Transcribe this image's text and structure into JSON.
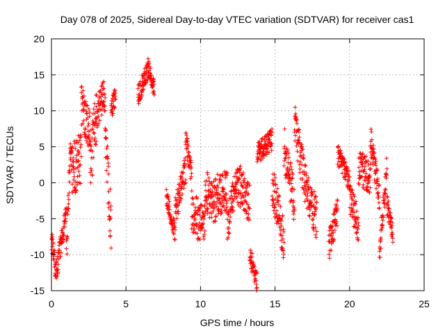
{
  "chart_data": {
    "type": "scatter",
    "title": "Day 078 of 2025, Sidereal Day-to-day VTEC variation (SDTVAR) for receiver cas1",
    "xlabel": "GPS time / hours",
    "ylabel": "SDTVAR / TECUs",
    "xlim": [
      0,
      25
    ],
    "ylim": [
      -15,
      20
    ],
    "grid": true,
    "marker": "plus",
    "marker_color": "#ff0000",
    "x_ticks": [
      0,
      5,
      10,
      15,
      20,
      25
    ],
    "x_tick_labels": [
      "0",
      "5",
      "10",
      "15",
      "20",
      "25"
    ],
    "y_ticks": [
      -15,
      -10,
      -5,
      0,
      5,
      10,
      15,
      20
    ],
    "y_tick_labels": [
      "-15",
      "-10",
      "-5",
      "0",
      "5",
      "10",
      "15",
      "20"
    ],
    "segments": [
      {
        "x0": 0.0,
        "x1": 0.35,
        "y0": -8,
        "y1": -13,
        "noise": 1.5
      },
      {
        "x0": 0.35,
        "x1": 1.0,
        "y0": -12,
        "y1": -4,
        "noise": 1.5
      },
      {
        "x0": 1.0,
        "x1": 1.3,
        "y0": -10,
        "y1": 6,
        "noise": 2.5
      },
      {
        "x0": 1.3,
        "x1": 2.0,
        "y0": 2,
        "y1": 3,
        "noise": 4
      },
      {
        "x0": 2.0,
        "x1": 2.6,
        "y0": 11,
        "y1": 7,
        "noise": 3
      },
      {
        "x0": 2.6,
        "x1": 3.0,
        "y0": 3,
        "y1": 9,
        "noise": 4
      },
      {
        "x0": 3.0,
        "x1": 3.6,
        "y0": 10,
        "y1": 12,
        "noise": 2.5
      },
      {
        "x0": 3.6,
        "x1": 4.0,
        "y0": 6,
        "y1": -6,
        "noise": 4
      },
      {
        "x0": 4.0,
        "x1": 4.3,
        "y0": 10,
        "y1": 12,
        "noise": 1.5
      },
      {
        "x0": 5.8,
        "x1": 6.5,
        "y0": 12,
        "y1": 16,
        "noise": 1.5
      },
      {
        "x0": 6.5,
        "x1": 6.9,
        "y0": 16,
        "y1": 13,
        "noise": 1.2
      },
      {
        "x0": 7.7,
        "x1": 8.3,
        "y0": -2,
        "y1": -7,
        "noise": 1.2
      },
      {
        "x0": 8.3,
        "x1": 9.0,
        "y0": -4,
        "y1": 2,
        "noise": 2
      },
      {
        "x0": 9.0,
        "x1": 9.4,
        "y0": 6,
        "y1": 1,
        "noise": 1.5
      },
      {
        "x0": 9.4,
        "x1": 10.3,
        "y0": -4,
        "y1": -6,
        "noise": 3
      },
      {
        "x0": 10.3,
        "x1": 11.0,
        "y0": -1,
        "y1": -3,
        "noise": 3
      },
      {
        "x0": 11.0,
        "x1": 11.8,
        "y0": -2,
        "y1": -1,
        "noise": 3
      },
      {
        "x0": 11.8,
        "x1": 12.5,
        "y0": -6,
        "y1": 1,
        "noise": 2.5
      },
      {
        "x0": 12.5,
        "x1": 13.3,
        "y0": 0,
        "y1": -3,
        "noise": 3
      },
      {
        "x0": 13.3,
        "x1": 13.8,
        "y0": -10,
        "y1": -14,
        "noise": 1.5
      },
      {
        "x0": 13.8,
        "x1": 14.8,
        "y0": 4,
        "y1": 6,
        "noise": 1.5
      },
      {
        "x0": 14.8,
        "x1": 15.6,
        "y0": 0,
        "y1": -8,
        "noise": 3
      },
      {
        "x0": 15.6,
        "x1": 16.3,
        "y0": 5,
        "y1": -3,
        "noise": 3
      },
      {
        "x0": 16.3,
        "x1": 17.1,
        "y0": 8,
        "y1": -1,
        "noise": 3
      },
      {
        "x0": 17.1,
        "x1": 17.8,
        "y0": -1,
        "y1": -5,
        "noise": 3
      },
      {
        "x0": 18.6,
        "x1": 19.2,
        "y0": -9,
        "y1": -4,
        "noise": 2
      },
      {
        "x0": 19.2,
        "x1": 20.0,
        "y0": 4,
        "y1": 0,
        "noise": 1.5
      },
      {
        "x0": 20.0,
        "x1": 20.6,
        "y0": -2,
        "y1": -6,
        "noise": 2.5
      },
      {
        "x0": 20.6,
        "x1": 21.4,
        "y0": 2,
        "y1": 1,
        "noise": 2.5
      },
      {
        "x0": 21.4,
        "x1": 22.0,
        "y0": 6,
        "y1": -2,
        "noise": 2
      },
      {
        "x0": 22.0,
        "x1": 22.5,
        "y0": -10,
        "y1": 2,
        "noise": 2
      },
      {
        "x0": 22.5,
        "x1": 22.9,
        "y0": -3,
        "y1": -7,
        "noise": 1.5
      }
    ]
  }
}
